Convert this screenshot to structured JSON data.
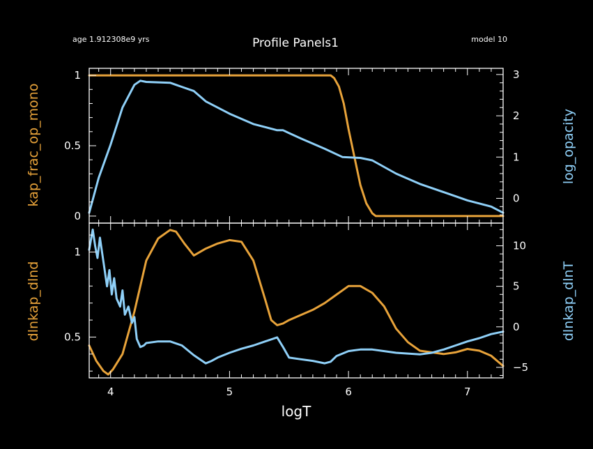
{
  "header": {
    "age": "age 1.912308e9 yrs",
    "title": "Profile Panels1",
    "model": "model 10"
  },
  "colors": {
    "background": "#000000",
    "axes": "#ffffff",
    "orange": "#e8a33a",
    "blue": "#8fd0f8"
  },
  "chart_data": [
    {
      "type": "line",
      "panel": "top",
      "xlabel": "logT",
      "xlim": [
        3.82,
        7.3
      ],
      "xticks": [
        4,
        5,
        6,
        7
      ],
      "xtick_labels": [
        "4",
        "5",
        "6",
        "7"
      ],
      "left": {
        "ylabel": "kap_frac_op_mono",
        "ylim": [
          -0.05,
          1.05
        ],
        "ticks": [
          0,
          0.5,
          1
        ],
        "tick_labels": [
          "0",
          "0.5",
          "1"
        ],
        "series": {
          "name": "kap_frac_op_mono",
          "color": "orange",
          "x": [
            3.82,
            4.0,
            5.0,
            5.85,
            5.88,
            5.92,
            5.96,
            6.0,
            6.05,
            6.1,
            6.15,
            6.2,
            6.23,
            6.3,
            7.0,
            7.3
          ],
          "y": [
            1,
            1,
            1,
            1,
            0.98,
            0.92,
            0.8,
            0.62,
            0.42,
            0.22,
            0.09,
            0.02,
            0,
            0,
            0,
            0
          ]
        }
      },
      "right": {
        "ylabel": "log_opacity",
        "ylim": [
          -0.6,
          3.15
        ],
        "ticks": [
          0,
          1,
          2,
          3
        ],
        "tick_labels": [
          "0",
          "1",
          "2",
          "3"
        ],
        "series": {
          "name": "log_opacity",
          "color": "blue",
          "x": [
            3.82,
            3.9,
            4.0,
            4.1,
            4.2,
            4.25,
            4.3,
            4.5,
            4.7,
            4.8,
            5.0,
            5.2,
            5.4,
            5.45,
            5.5,
            5.6,
            5.8,
            5.95,
            6.1,
            6.2,
            6.4,
            6.6,
            6.8,
            7.0,
            7.2,
            7.3
          ],
          "y": [
            -0.35,
            0.5,
            1.3,
            2.2,
            2.75,
            2.85,
            2.82,
            2.8,
            2.6,
            2.35,
            2.05,
            1.8,
            1.65,
            1.65,
            1.58,
            1.45,
            1.2,
            1.0,
            0.98,
            0.92,
            0.6,
            0.35,
            0.15,
            -0.05,
            -0.2,
            -0.35
          ]
        }
      }
    },
    {
      "type": "line",
      "panel": "bottom",
      "xlabel": "logT",
      "xlim": [
        3.82,
        7.3
      ],
      "xticks": [
        4,
        5,
        6,
        7
      ],
      "xtick_labels": [
        "4",
        "5",
        "6",
        "7"
      ],
      "left": {
        "ylabel": "dlnkap_dlnd",
        "ylim": [
          0.26,
          1.17
        ],
        "ticks": [
          0.5,
          1
        ],
        "tick_labels": [
          "0.5",
          "1"
        ],
        "series": {
          "name": "dlnkap_dlnd",
          "color": "orange",
          "x": [
            3.82,
            3.88,
            3.94,
            3.98,
            4.02,
            4.1,
            4.2,
            4.3,
            4.4,
            4.5,
            4.55,
            4.62,
            4.7,
            4.8,
            4.9,
            5.0,
            5.1,
            5.2,
            5.3,
            5.35,
            5.4,
            5.45,
            5.5,
            5.6,
            5.7,
            5.8,
            5.9,
            6.0,
            6.1,
            6.2,
            6.3,
            6.4,
            6.5,
            6.6,
            6.8,
            6.9,
            7.0,
            7.1,
            7.2,
            7.3
          ],
          "y": [
            0.45,
            0.36,
            0.3,
            0.28,
            0.31,
            0.4,
            0.65,
            0.95,
            1.08,
            1.13,
            1.12,
            1.05,
            0.98,
            1.02,
            1.05,
            1.07,
            1.06,
            0.95,
            0.72,
            0.6,
            0.57,
            0.58,
            0.6,
            0.63,
            0.66,
            0.7,
            0.75,
            0.8,
            0.8,
            0.76,
            0.68,
            0.55,
            0.47,
            0.42,
            0.4,
            0.41,
            0.43,
            0.42,
            0.39,
            0.33
          ]
        }
      },
      "right": {
        "ylabel": "dlnkap_dlnT",
        "ylim": [
          -6.3,
          12.8
        ],
        "ticks": [
          -5,
          0,
          5,
          10
        ],
        "tick_labels": [
          "−5",
          "0",
          "5",
          "10"
        ],
        "series": {
          "name": "dlnkap_dlnT",
          "color": "blue",
          "x": [
            3.82,
            3.85,
            3.87,
            3.89,
            3.91,
            3.93,
            3.95,
            3.97,
            3.99,
            4.01,
            4.03,
            4.05,
            4.08,
            4.1,
            4.12,
            4.15,
            4.18,
            4.2,
            4.22,
            4.25,
            4.28,
            4.3,
            4.4,
            4.5,
            4.6,
            4.7,
            4.8,
            4.85,
            4.9,
            5.0,
            5.1,
            5.2,
            5.3,
            5.4,
            5.45,
            5.5,
            5.6,
            5.7,
            5.8,
            5.85,
            5.9,
            6.0,
            6.1,
            6.2,
            6.3,
            6.4,
            6.5,
            6.6,
            6.7,
            6.8,
            6.9,
            7.0,
            7.1,
            7.2,
            7.3
          ],
          "y": [
            9.5,
            12,
            10,
            8.5,
            11,
            9,
            7,
            5,
            7,
            4,
            6,
            3.5,
            2.5,
            4.5,
            1.5,
            2.5,
            0.5,
            1.2,
            -1.5,
            -2.5,
            -2.3,
            -2,
            -1.8,
            -1.8,
            -2.3,
            -3.5,
            -4.5,
            -4.2,
            -3.8,
            -3.2,
            -2.7,
            -2.3,
            -1.8,
            -1.3,
            -2.5,
            -3.8,
            -4,
            -4.2,
            -4.5,
            -4.3,
            -3.6,
            -3,
            -2.8,
            -2.8,
            -3,
            -3.2,
            -3.3,
            -3.4,
            -3.2,
            -2.8,
            -2.3,
            -1.8,
            -1.4,
            -0.9,
            -0.6
          ]
        }
      }
    }
  ]
}
